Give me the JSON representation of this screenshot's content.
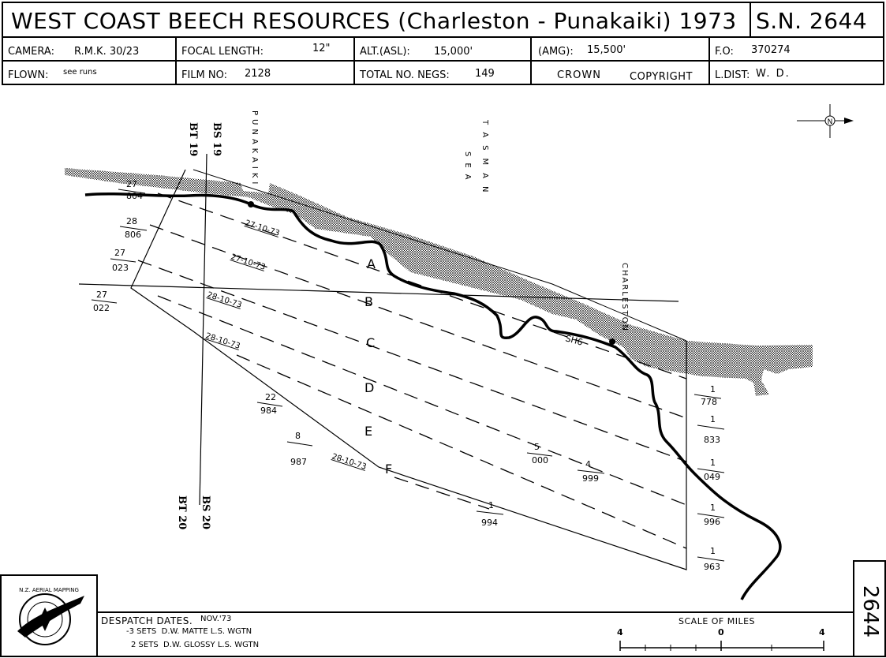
{
  "header": {
    "title": "WEST COAST BEECH RESOURCES (Charleston - Punakaiki) 1973",
    "sn": "S.N. 2644",
    "camera_label": "CAMERA:",
    "camera_value": "R.M.K. 30/23",
    "focal_label": "FOCAL LENGTH:",
    "focal_value": "12\"",
    "alt_label": "ALT.(ASL):",
    "alt_value": "15,000'",
    "amg_label": "(AMG):",
    "amg_value": "15,500'",
    "fo_label": "F.O:",
    "fo_value": "370274",
    "flown_label": "FLOWN:",
    "flown_value": "see runs",
    "film_label": "FILM NO:",
    "film_value": "2128",
    "negs_label": "TOTAL NO. NEGS:",
    "negs_value": "149",
    "crown": "CROWN",
    "copyright": "COPYRIGHT",
    "ldist_label": "L.DIST:",
    "ldist_value": "W. D."
  },
  "map": {
    "place_punakaiki": "PUNAKAIKI",
    "place_charleston": "CHARLESTON",
    "sea_tasman": "TASMAN",
    "sea_sea": "SEA",
    "road": "SH6",
    "bt19": "BT 19",
    "bs19": "BS 19",
    "bt20": "BT 20",
    "bs20": "BS 20",
    "north": "N",
    "runs": [
      {
        "letter": "A",
        "date": "27-10-73"
      },
      {
        "letter": "B",
        "date": "27-10-73"
      },
      {
        "letter": "C",
        "date": "28-10-73"
      },
      {
        "letter": "D",
        "date": "28-10-73"
      },
      {
        "letter": "E",
        "date": ""
      },
      {
        "letter": "F",
        "date": "28-10-73"
      }
    ],
    "left_labels": [
      {
        "top": "27",
        "bottom": "804"
      },
      {
        "top": "28",
        "bottom": "806"
      },
      {
        "top": "27",
        "bottom": "023"
      },
      {
        "top": "27",
        "bottom": "022"
      }
    ],
    "right_labels": [
      {
        "top": "1",
        "bottom": "778"
      },
      {
        "top": "1",
        "bottom": "833"
      },
      {
        "top": "1",
        "bottom": "049"
      },
      {
        "top": "1",
        "bottom": "996"
      },
      {
        "top": "1",
        "bottom": "963"
      }
    ],
    "mid_labels": [
      {
        "top": "22",
        "bottom": "984"
      },
      {
        "top": "8",
        "bottom": "987"
      },
      {
        "top": "5",
        "bottom": "000"
      },
      {
        "top": "4",
        "bottom": "999"
      },
      {
        "top": "1",
        "bottom": "994"
      }
    ]
  },
  "footer": {
    "despatch_label": "DESPATCH DATES.",
    "despatch_date": "NOV.'73",
    "line1": "-3 SETS  D.W. MATTE L.S. WGTN",
    "line2": "2 SETS  D.W. GLOSSY L.S. WGTN",
    "scale_title": "SCALE OF MILES",
    "scale_left": "4",
    "scale_mid": "0",
    "scale_right": "4",
    "logo_text": "N.Z. AERIAL MAPPING",
    "side_number": "2644"
  }
}
